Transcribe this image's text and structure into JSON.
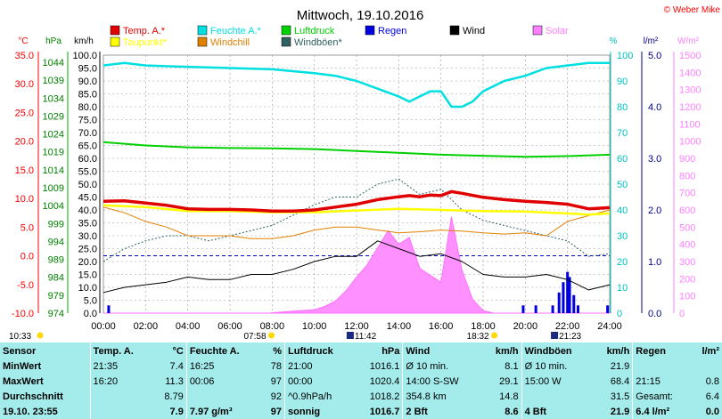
{
  "title": "Mittwoch, 19.10.2016",
  "copyright": "© Weber Mike",
  "legend": [
    {
      "label": "Temp. A.*",
      "color": "#e00000"
    },
    {
      "label": "Feuchte A.*",
      "color": "#00e0e0"
    },
    {
      "label": "Luftdruck",
      "color": "#00d000"
    },
    {
      "label": "Regen",
      "color": "#0000e0"
    },
    {
      "label": "Wind",
      "color": "#000000"
    },
    {
      "label": "Solar",
      "color": "#ff80ff"
    },
    {
      "label": "Taupunkt*",
      "color": "#ffff00"
    },
    {
      "label": "Windchill",
      "color": "#e08000"
    },
    {
      "label": "Windböen*",
      "color": "#306060"
    }
  ],
  "axes": {
    "temp": {
      "unit": "°C",
      "ticks": [
        "35.0",
        "30.0",
        "25.0",
        "20.0",
        "15.0",
        "10.0",
        "5.0",
        "0.0",
        "-5.0",
        "-10.0"
      ],
      "color": "#ff0000"
    },
    "hpa": {
      "unit": "hPa",
      "ticks": [
        "1044",
        "1039",
        "1034",
        "1029",
        "1024",
        "1019",
        "1014",
        "1009",
        "1004",
        "999",
        "994",
        "989",
        "984",
        "979",
        "974"
      ],
      "color": "#008000"
    },
    "kmh": {
      "unit": "km/h",
      "ticks": [
        "100.0",
        "95.0",
        "90.0",
        "85.0",
        "80.0",
        "75.0",
        "70.0",
        "65.0",
        "60.0",
        "55.0",
        "50.0",
        "45.0",
        "40.0",
        "35.0",
        "30.0",
        "25.0",
        "20.0",
        "15.0",
        "10.0",
        "5.0",
        "0.0"
      ],
      "color": "#000000"
    },
    "pct": {
      "unit": "%",
      "ticks": [
        "100",
        "90",
        "80",
        "70",
        "60",
        "50",
        "40",
        "30",
        "20",
        "10",
        "0"
      ],
      "color": "#00c0c0"
    },
    "rain": {
      "unit": "l/m²",
      "ticks": [
        "5.0",
        "4.0",
        "3.0",
        "2.0",
        "1.0",
        "0.0"
      ],
      "color": "#000080"
    },
    "solar": {
      "unit": "W/m²",
      "ticks": [
        "1500",
        "1400",
        "1300",
        "1200",
        "1100",
        "1000",
        "900",
        "800",
        "700",
        "600",
        "500",
        "400",
        "300",
        "200",
        "100",
        "0"
      ],
      "color": "#ff80ff"
    },
    "x_ticks": [
      "00:00",
      "02:00",
      "04:00",
      "06:00",
      "08:00",
      "10:00",
      "12:00",
      "14:00",
      "16:00",
      "18:00",
      "20:00",
      "22:00",
      "24:00"
    ]
  },
  "sun": {
    "left_time": "10:33",
    "sunrise": "07:58",
    "moon_rise": "11:42",
    "sunset": "18:32",
    "moon_set": "21:23"
  },
  "chart_data": {
    "type": "line",
    "x_unit": "hours",
    "xlim": [
      0,
      24
    ],
    "series": [
      {
        "name": "Temp. A.*",
        "unit": "°C",
        "x": [
          0,
          1,
          2,
          3,
          4,
          5,
          6,
          7,
          8,
          9,
          10,
          11,
          12,
          13,
          14,
          14.5,
          15,
          15.5,
          16,
          16.5,
          17,
          18,
          19,
          20,
          21,
          22,
          23,
          24
        ],
        "y": [
          9.5,
          9.6,
          9.2,
          8.8,
          8.2,
          8.1,
          8.1,
          8.0,
          7.8,
          7.8,
          8.0,
          8.5,
          9.0,
          9.8,
          10.3,
          10.5,
          10.3,
          10.6,
          10.5,
          11.2,
          10.9,
          10.2,
          9.8,
          9.5,
          9.3,
          9.0,
          8.2,
          8.4
        ]
      },
      {
        "name": "Taupunkt*",
        "unit": "°C",
        "x": [
          0,
          2,
          4,
          6,
          8,
          10,
          12,
          14,
          16,
          18,
          20,
          22,
          23,
          24
        ],
        "y": [
          8.8,
          8.5,
          7.8,
          7.8,
          7.6,
          7.6,
          7.9,
          8.2,
          8.0,
          7.8,
          7.7,
          7.4,
          7.2,
          7.4
        ]
      },
      {
        "name": "Feuchte A.*",
        "unit": "%",
        "x": [
          0,
          1,
          2,
          4,
          6,
          8,
          10,
          11,
          12,
          13,
          14,
          14.5,
          15,
          15.5,
          16,
          16.5,
          17,
          17.5,
          18,
          19,
          20,
          21,
          22,
          23,
          24
        ],
        "y": [
          96,
          97,
          96,
          95.5,
          95,
          94.5,
          93,
          92,
          90,
          87,
          84,
          82,
          84,
          86,
          86,
          80,
          80,
          82,
          86,
          90,
          92,
          95,
          96,
          97,
          97
        ]
      },
      {
        "name": "Luftdruck",
        "unit": "hPa",
        "x": [
          0,
          2,
          4,
          6,
          8,
          10,
          12,
          14,
          16,
          18,
          20,
          22,
          24
        ],
        "y": [
          1020.4,
          1019.5,
          1019.0,
          1018.8,
          1018.7,
          1018.5,
          1018.0,
          1017.5,
          1017.0,
          1016.7,
          1016.4,
          1016.6,
          1017.0
        ]
      },
      {
        "name": "Wind",
        "unit": "km/h",
        "x": [
          0,
          1,
          2,
          3,
          4,
          5,
          6,
          7,
          8,
          9,
          10,
          11,
          12,
          13,
          14,
          15,
          16,
          17,
          18,
          19,
          20,
          21,
          22,
          23,
          24
        ],
        "y": [
          8,
          10,
          11,
          12,
          14,
          13,
          13,
          15,
          15,
          17,
          20,
          22,
          22,
          28,
          25,
          22,
          23,
          20,
          15,
          14,
          14,
          15,
          13,
          9,
          11
        ]
      },
      {
        "name": "Windchill",
        "unit": "°C",
        "x": [
          0,
          1,
          2,
          3,
          4,
          5,
          6,
          7,
          8,
          9,
          10,
          11,
          12,
          13,
          14,
          15,
          16,
          17,
          18,
          19,
          20,
          21,
          22,
          23,
          24
        ],
        "y": [
          8.5,
          7.5,
          6.0,
          5.0,
          3.5,
          3.5,
          3.5,
          3.0,
          3.0,
          3.5,
          4.5,
          5.0,
          5.0,
          4.5,
          4.0,
          4.2,
          4.5,
          4.3,
          4.0,
          3.8,
          4.0,
          3.5,
          6.0,
          7.0,
          8.0
        ]
      },
      {
        "name": "Windböen*",
        "unit": "km/h",
        "x": [
          0,
          1,
          2,
          3,
          4,
          5,
          6,
          7,
          8,
          9,
          10,
          11,
          12,
          13,
          14,
          15,
          16,
          17,
          18,
          19,
          20,
          21,
          22,
          23,
          24
        ],
        "y": [
          20,
          25,
          28,
          30,
          30,
          28,
          30,
          32,
          34,
          38,
          42,
          45,
          45,
          50,
          52,
          46,
          48,
          40,
          36,
          34,
          32,
          30,
          28,
          22,
          23
        ]
      },
      {
        "name": "Solar",
        "unit": "W/m²",
        "x": [
          0,
          7.9,
          8,
          9,
          10,
          10.5,
          11,
          11.5,
          12,
          12.5,
          13,
          13.5,
          14,
          14.5,
          15,
          15.5,
          16,
          16.5,
          17,
          17.5,
          18,
          18.5,
          24
        ],
        "y": [
          0,
          0,
          2,
          12,
          20,
          40,
          70,
          130,
          210,
          280,
          380,
          480,
          400,
          440,
          260,
          220,
          180,
          560,
          250,
          80,
          15,
          0,
          0
        ]
      },
      {
        "name": "Regen",
        "unit": "l/m²",
        "x": [
          0.25,
          19.9,
          20.5,
          21.3,
          21.6,
          21.8,
          22.0,
          22.1,
          22.3,
          22.5,
          23.9
        ],
        "y": [
          0.15,
          0.15,
          0.15,
          0.15,
          0.4,
          0.6,
          0.8,
          0.7,
          0.35,
          0.15,
          0.15
        ]
      }
    ]
  },
  "table": {
    "headers": [
      "Sensor",
      "Temp. A.",
      "°C",
      "Feuchte A.",
      "%",
      "Luftdruck",
      "hPa",
      "Wind",
      "km/h",
      "Windböen",
      "km/h",
      "Regen",
      "l/m²"
    ],
    "rows": [
      [
        "MinWert",
        "21:35",
        "7.4",
        "16:25",
        "78",
        "21:00",
        "1016.1",
        "Ø 10 min.",
        "8.1",
        "Ø 10 min.",
        "21.9",
        "",
        ""
      ],
      [
        "MaxWert",
        "16:20",
        "11.3",
        "00:06",
        "97",
        "00:00",
        "1020.4",
        "14:00   S-SW",
        "29.1",
        "15:00   W",
        "68.4",
        "21:15",
        "0.8"
      ],
      [
        "Durchschnitt",
        "",
        "8.79",
        "",
        "92",
        "^0.9hPa/h",
        "1018.2",
        "354.8 km",
        "14.8",
        "",
        "31.5",
        "Gesamt:",
        "6.4"
      ],
      [
        "19.10. 23:55",
        "",
        "7.9",
        "7.97 g/m³",
        "97",
        "sonnig",
        "1016.7",
        "2 Bft",
        "8.6",
        "4 Bft",
        "21.9",
        "6.4 l/m²",
        "0.0"
      ]
    ]
  }
}
